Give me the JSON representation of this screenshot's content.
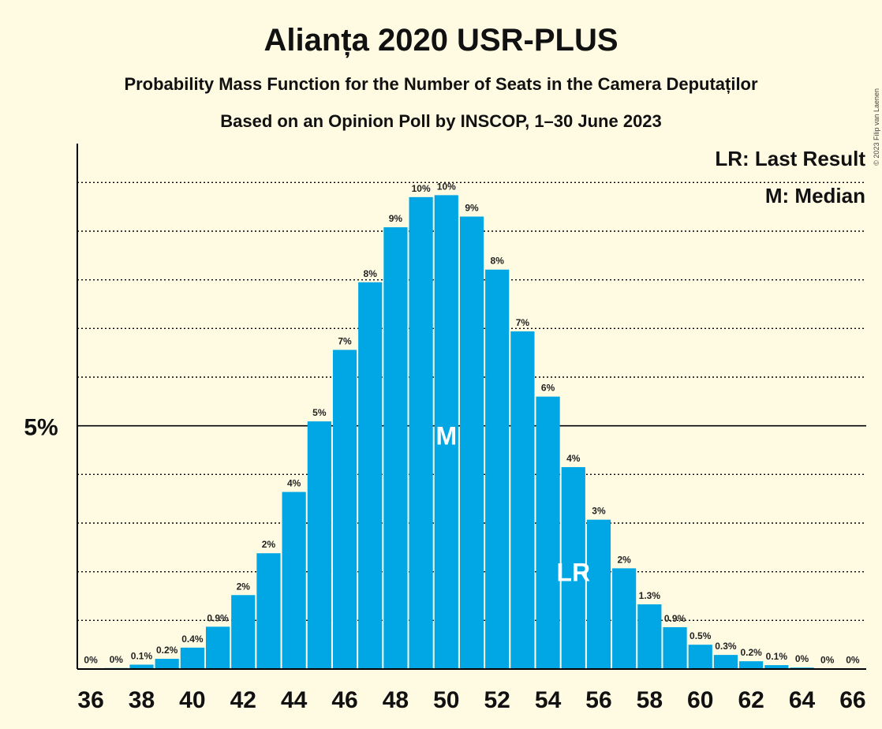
{
  "chart_data": {
    "type": "bar",
    "title": "Alianța 2020 USR-PLUS",
    "subtitle": "Probability Mass Function for the Number of Seats in the Camera Deputaților",
    "subtitle2": "Based on an Opinion Poll by INSCOP, 1–30 June 2023",
    "copyright": "© 2023 Filip van Laenen",
    "y_tick_label": "5%",
    "y_reference": 5,
    "ylim": [
      0,
      10.8
    ],
    "grid": true,
    "legend": {
      "placement": "top-right",
      "entries": [
        "LR: Last Result",
        "M: Median"
      ]
    },
    "bar_color": "#00A7E4",
    "categories": [
      36,
      37,
      38,
      39,
      40,
      41,
      42,
      43,
      44,
      45,
      46,
      47,
      48,
      49,
      50,
      51,
      52,
      53,
      54,
      55,
      56,
      57,
      58,
      59,
      60,
      61,
      62,
      63,
      64,
      65,
      66
    ],
    "x_tick_labels": [
      "36",
      "38",
      "40",
      "42",
      "44",
      "46",
      "48",
      "50",
      "52",
      "54",
      "56",
      "58",
      "60",
      "62",
      "64",
      "66"
    ],
    "values": [
      0.01,
      0.02,
      0.09,
      0.21,
      0.44,
      0.87,
      1.52,
      2.38,
      3.64,
      5.09,
      6.56,
      7.95,
      9.08,
      9.7,
      9.74,
      9.3,
      8.21,
      6.94,
      5.6,
      4.15,
      3.07,
      2.07,
      1.33,
      0.86,
      0.5,
      0.29,
      0.16,
      0.08,
      0.03,
      0.01,
      0.01
    ],
    "labels": [
      "0%",
      "0%",
      "0.1%",
      "0.2%",
      "0.4%",
      "0.9%",
      "2%",
      "2%",
      "4%",
      "5%",
      "7%",
      "8%",
      "9%",
      "10%",
      "10%",
      "9%",
      "8%",
      "7%",
      "6%",
      "4%",
      "3%",
      "2%",
      "1.3%",
      "0.9%",
      "0.5%",
      "0.3%",
      "0.2%",
      "0.1%",
      "0%",
      "0%",
      "0%"
    ],
    "median": 50,
    "median_marker": "M",
    "last_result": 55,
    "last_result_marker": "LR"
  }
}
